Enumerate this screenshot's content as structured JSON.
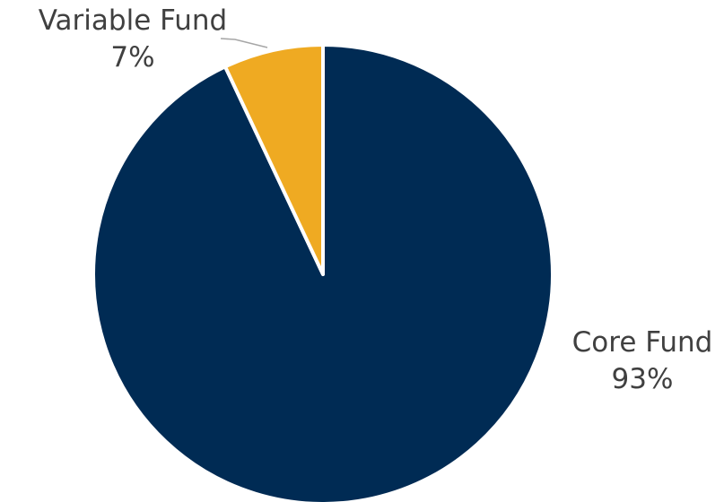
{
  "chart_data": {
    "type": "pie",
    "title": "",
    "categories": [
      "Core Fund",
      "Variable Fund"
    ],
    "values": [
      93,
      7
    ],
    "value_labels": [
      "93%",
      "7%"
    ],
    "colors": [
      "#002B54",
      "#EFAA22"
    ],
    "legend": "none",
    "labels_on_chart": true
  }
}
